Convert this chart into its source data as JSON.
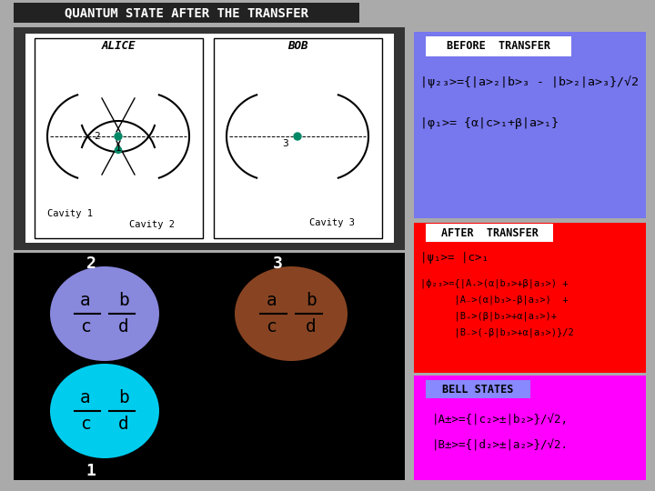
{
  "title": "QUANTUM STATE AFTER THE TRANSFER",
  "bg_color": "#aaaaaa",
  "title_bg": "#222222",
  "title_text_color": "white",
  "alice_label": "ALICE",
  "bob_label": "BOB",
  "cavity1_label": "Cavity 1",
  "cavity2_label": "Cavity 2",
  "cavity3_label": "Cavity 3",
  "before_transfer_bg": "#7777ee",
  "before_transfer_label_bg": "white",
  "before_transfer_label": "BEFORE  TRANSFER",
  "before_line1": "|ψ₂₃>={|a>₂|b>₃ - |b>₂|a>₃}/√2",
  "before_line2": "|φ₁>= {α|c>₁+β|a>₁}",
  "after_transfer_bg": "#ff0000",
  "after_transfer_label_bg": "white",
  "after_transfer_label": "AFTER  TRANSFER",
  "after_line1": "|ψ₁>= |c>₁",
  "after_line2": "|ϕ₂₃>={|A₊>(α|b₃>+β|a₃>) +",
  "after_line3": "      |A₋>(α|b₃>-β|a₃>)  +",
  "after_line4": "      |B₊>(β|b₃>+α|a₃>)+",
  "after_line5": "      |B₋>(-β|b₃>+α|a₃>)}/2",
  "bell_bg": "#ff00ff",
  "bell_label_bg": "#8888ff",
  "bell_label": "BELL STATES",
  "bell_line1": "|A±>={|c₂>±|b₂>}/√2,",
  "bell_line2": "|B±>={|d₂>±|a₂>}/√2.",
  "black_panel_bg": "black",
  "circle2_color": "#8888dd",
  "circle3_color": "#884422",
  "circle1_color": "#00ccee",
  "num2_label": "2",
  "num3_label": "3",
  "num1_label": "1"
}
